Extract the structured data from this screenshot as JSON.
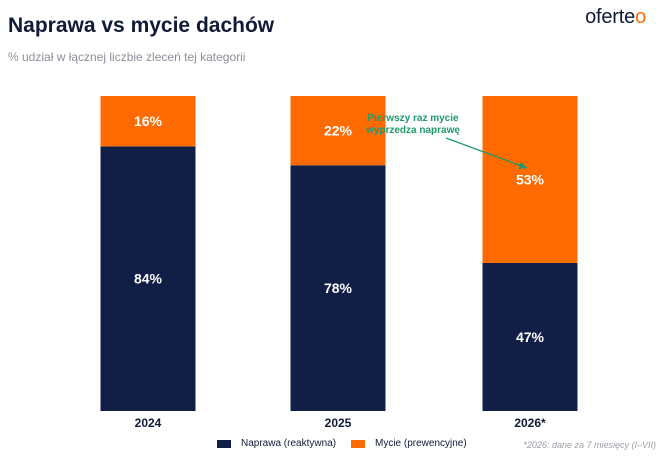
{
  "header": {
    "title": "Naprawa vs mycie dachów",
    "subtitle": "% udział w łącznej liczbie zleceń tej kategorii",
    "logo_main": "oferte",
    "logo_accent": "o"
  },
  "colors": {
    "naprawa": "#111e45",
    "mycie": "#ff6b00",
    "annotation": "#1f9a6a"
  },
  "chart_data": {
    "type": "bar",
    "stacked": true,
    "categories": [
      "2024",
      "2025",
      "2026*"
    ],
    "series": [
      {
        "name": "Naprawa (reaktywna)",
        "values": [
          84,
          78,
          47
        ],
        "labels": [
          "84%",
          "78%",
          "47%"
        ]
      },
      {
        "name": "Mycie (prewencyjne)",
        "values": [
          16,
          22,
          53
        ],
        "labels": [
          "16%",
          "22%",
          "53%"
        ]
      }
    ],
    "ylim": [
      0,
      100
    ],
    "grid": false,
    "legend_position": "bottom-center",
    "annotation": {
      "lines": [
        "Pierwszy raz mycie",
        "wyprzedza naprawę"
      ],
      "target_category": "2026*"
    }
  },
  "footnote": "*2026: dane za 7 miesięcy (I–VII)"
}
